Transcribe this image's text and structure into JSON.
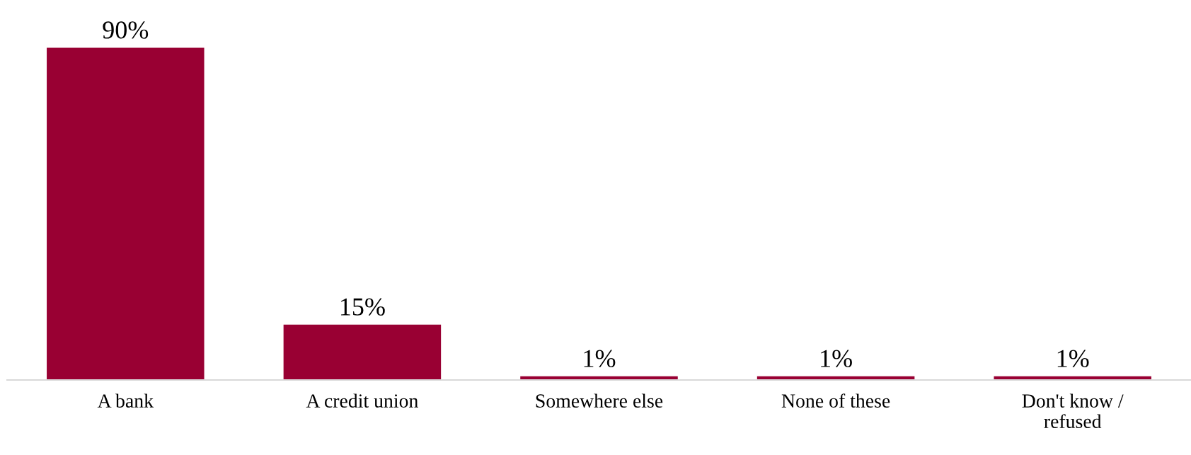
{
  "chart_data": {
    "type": "bar",
    "categories": [
      "A bank",
      "A credit union",
      "Somewhere else",
      "None of these",
      "Don't know /\nrefused"
    ],
    "values": [
      90,
      15,
      1,
      1,
      1
    ],
    "value_labels": [
      "90%",
      "15%",
      "1%",
      "1%",
      "1%"
    ],
    "color": "#990033",
    "grid": false,
    "legend": false
  }
}
